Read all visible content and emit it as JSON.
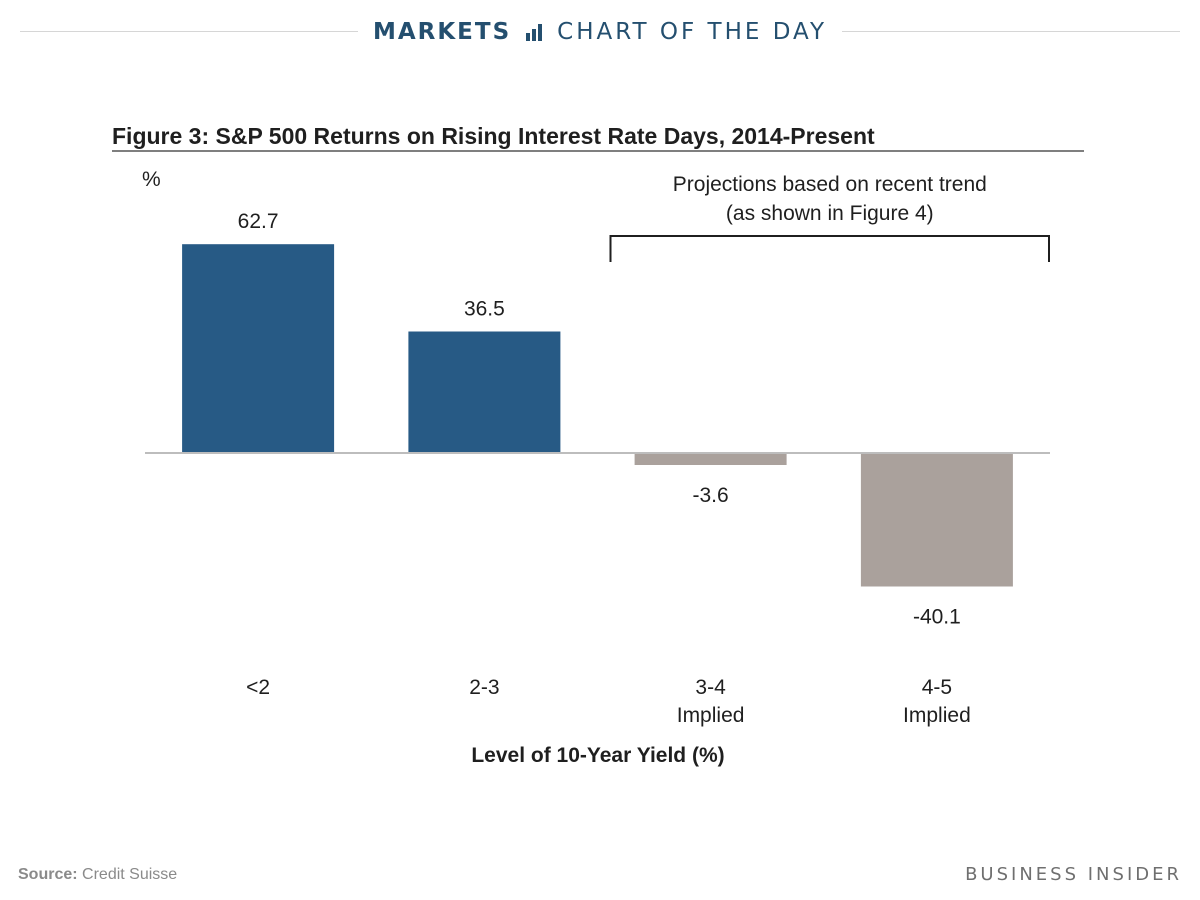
{
  "banner": {
    "section": "MARKETS",
    "series": "CHART OF THE DAY",
    "icon": "bar-chart-icon",
    "color": "#244f6f"
  },
  "chart_data": {
    "type": "bar",
    "title": "Figure 3: S&P 500 Returns on Rising Interest Rate Days, 2014-Present",
    "unit_label": "%",
    "xlabel": "Level of 10-Year Yield (%)",
    "ylabel": "",
    "categories": [
      {
        "line1": "<2",
        "line2": ""
      },
      {
        "line1": "2-3",
        "line2": ""
      },
      {
        "line1": "3-4",
        "line2": "Implied"
      },
      {
        "line1": "4-5",
        "line2": "Implied"
      }
    ],
    "values": [
      62.7,
      36.5,
      -3.6,
      -40.1
    ],
    "value_labels": [
      "62.7",
      "36.5",
      "-3.6",
      "-40.1"
    ],
    "colors": [
      "#275a85",
      "#275a85",
      "#aaa19c",
      "#aaa19c"
    ],
    "annotation": {
      "line1": "Projections based on recent trend",
      "line2": "(as shown in Figure 4)",
      "covers": [
        2,
        3
      ]
    },
    "grid": false,
    "legend": "none"
  },
  "footer": {
    "source_label": "Source:",
    "source_value": "Credit Suisse",
    "brand": "BUSINESS INSIDER"
  }
}
